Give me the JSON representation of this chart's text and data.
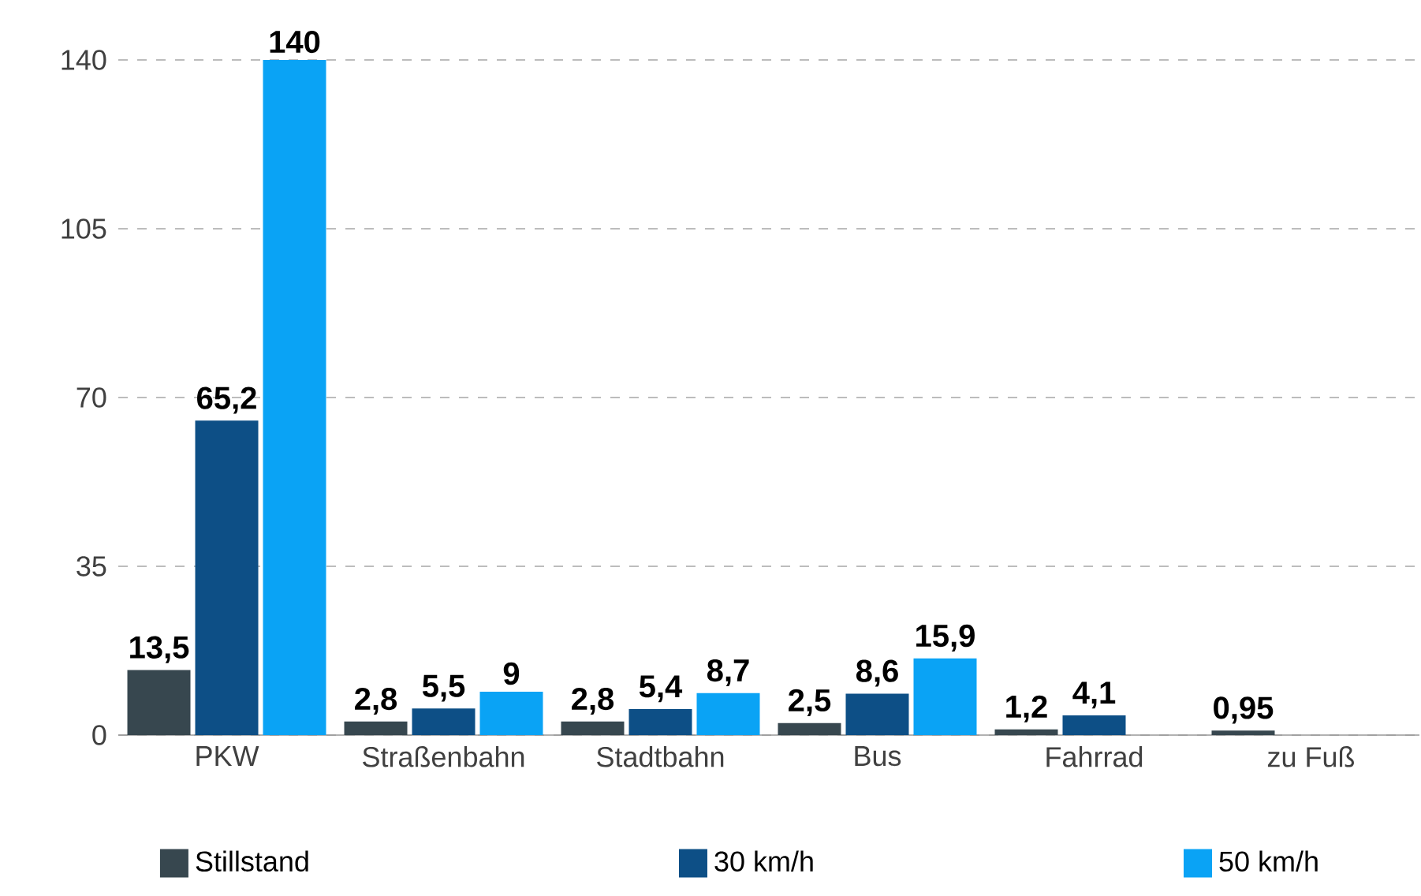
{
  "chart_data": {
    "type": "bar",
    "categories": [
      "PKW",
      "Straßenbahn",
      "Stadtbahn",
      "Bus",
      "Fahrrad",
      "zu Fuß"
    ],
    "series": [
      {
        "name": "Stillstand",
        "color": "#37474f",
        "values": [
          13.5,
          2.8,
          2.8,
          2.5,
          1.2,
          0.95
        ],
        "value_labels": [
          "13,5",
          "2,8",
          "2,8",
          "2,5",
          "1,2",
          "0,95"
        ]
      },
      {
        "name": "30 km/h",
        "color": "#0d4f86",
        "values": [
          65.2,
          5.5,
          5.4,
          8.6,
          4.1,
          null
        ],
        "value_labels": [
          "65,2",
          "5,5",
          "5,4",
          "8,6",
          "4,1",
          null
        ]
      },
      {
        "name": "50 km/h",
        "color": "#0aa3f5",
        "values": [
          140,
          9,
          8.7,
          15.9,
          null,
          null
        ],
        "value_labels": [
          "140",
          "9",
          "8,7",
          "15,9",
          null,
          null
        ]
      }
    ],
    "ylim": [
      0,
      140
    ],
    "yticks": [
      0,
      35,
      70,
      105,
      140
    ],
    "grid": "y",
    "legend": "bottom"
  }
}
